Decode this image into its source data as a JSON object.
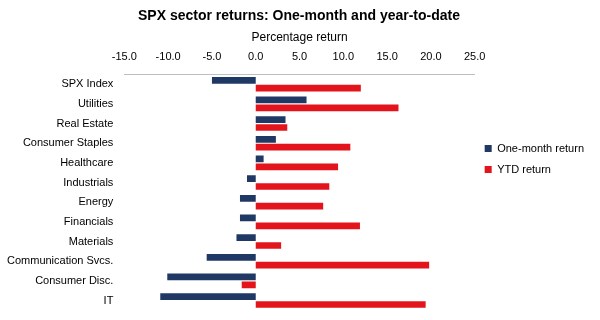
{
  "chart_data": {
    "type": "bar",
    "orientation": "horizontal",
    "title": "SPX sector returns: One-month and year-to-date",
    "xlabel": "Percentage return",
    "categories": [
      "SPX Index",
      "Utilities",
      "Real Estate",
      "Consumer Staples",
      "Healthcare",
      "Industrials",
      "Energy",
      "Financials",
      "Materials",
      "Communication Svcs.",
      "Consumer Disc.",
      "IT"
    ],
    "series": [
      {
        "name": "One-month return",
        "color": "#1f3864",
        "values": [
          -5.0,
          5.8,
          3.4,
          2.3,
          0.9,
          -1.0,
          -1.8,
          -1.8,
          -2.2,
          -5.6,
          -10.1,
          -10.9
        ]
      },
      {
        "name": "YTD return",
        "color": "#e3141b",
        "values": [
          12.0,
          16.3,
          3.6,
          10.8,
          9.4,
          8.4,
          7.7,
          11.9,
          2.9,
          19.8,
          -1.6,
          19.4
        ]
      }
    ],
    "xlim": [
      -15,
      25
    ],
    "xticks": [
      {
        "value": -15,
        "label": "-15.0"
      },
      {
        "value": -10,
        "label": "-10.0"
      },
      {
        "value": -5,
        "label": "-5.0"
      },
      {
        "value": 0,
        "label": "0.0"
      },
      {
        "value": 5,
        "label": "5.0"
      },
      {
        "value": 10,
        "label": "10.0"
      },
      {
        "value": 15,
        "label": "15.0"
      },
      {
        "value": 20,
        "label": "20.0"
      },
      {
        "value": 25,
        "label": "25.0"
      }
    ],
    "grid": false,
    "legend": "right"
  }
}
